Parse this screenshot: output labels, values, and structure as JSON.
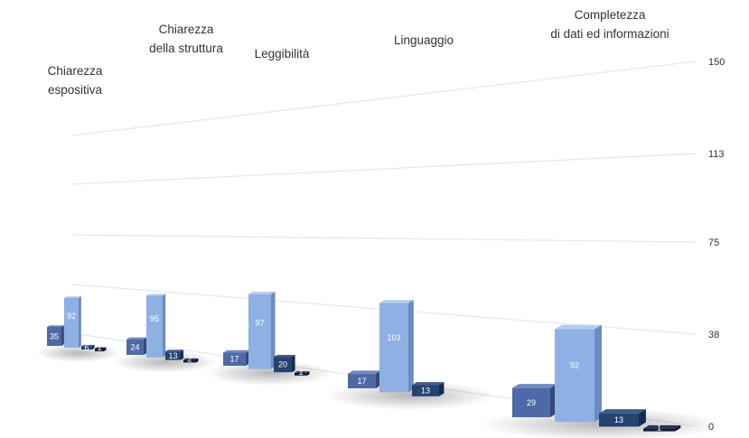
{
  "chart_data": {
    "type": "bar",
    "categories": [
      [
        "Chiarezza",
        "espositiva"
      ],
      [
        "Chiarezza",
        "della struttura"
      ],
      [
        "Leggibilità"
      ],
      [
        "Linguaggio"
      ],
      [
        "Completezza",
        "di dati ed informazioni"
      ]
    ],
    "series": [
      {
        "values": [
          35,
          24,
          17,
          17,
          29
        ]
      },
      {
        "values": [
          92,
          95,
          97,
          103,
          92
        ]
      },
      {
        "values": [
          6,
          13,
          20,
          13,
          13
        ]
      },
      {
        "values": [
          1,
          2,
          1,
          0,
          1
        ]
      }
    ],
    "value_labels": [
      [
        "35",
        "24",
        "17",
        "17",
        "29"
      ],
      [
        "92",
        "95",
        "97",
        "103",
        "92"
      ],
      [
        "6",
        "13",
        "20",
        "13",
        "13"
      ],
      [
        "1",
        "2",
        "1",
        "",
        "1"
      ]
    ],
    "yticks": [
      "0",
      "38",
      "75",
      "113",
      "150"
    ],
    "ylim": [
      0,
      150
    ],
    "colors": {
      "series_front": [
        "#4e6aa6",
        "#8fb0e3",
        "#26426f",
        "#111c36"
      ],
      "series_side": [
        "#34497a",
        "#6a8bc2",
        "#172b4f",
        "#0a1122"
      ],
      "series_top": [
        "#6f8ac0",
        "#b4cdf2",
        "#3d5a8a",
        "#27355a"
      ],
      "gridline": "#e6e6e6"
    }
  }
}
